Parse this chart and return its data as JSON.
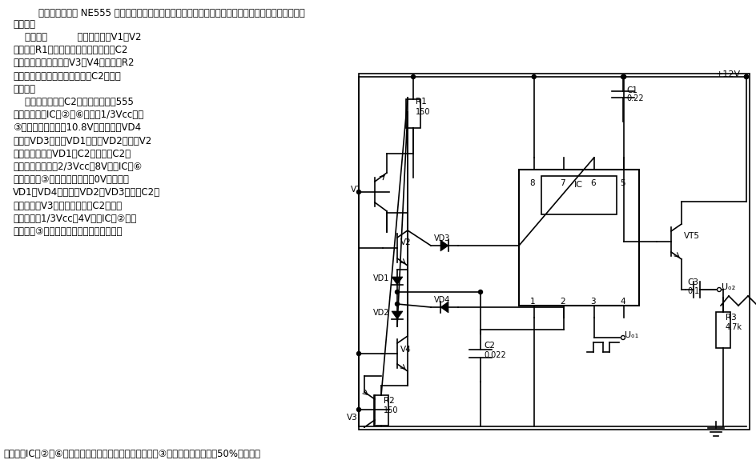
{
  "bg_color": "#ffffff",
  "line_color": "#000000",
  "title1": "本电路利用一块 NE555 时基集成电路及少量外围元件，可方便地同时得到三角波和方波两种脉冲波形",
  "title2": "的输出。",
  "body": [
    "    电路如图          所示，晶体管V1、V2",
    "和电阻器R1构成恒流源，用于对电容器C2",
    "实现线性充电；晶体管V3、V4和电阻器R2",
    "构成另一恒流源，用于对电容器C2实现线",
    "性放电。",
    "    电路刚接通时，C2上的电压为零，555",
    "时基集成电路IC的②、⑥脚小于1/3Vcc，其",
    "③脚输出高电平（约10.8V），二极管VD4",
    "正偏，VD3反偏，VD1正偏，VD2反偏，V2",
    "集电极电流通过VD1向C2充电。当C2上",
    "的电压线性增长到2/3Vcc即8V时，IC的⑥",
    "脚触发，使③脚输出低电平（约0V）。此时",
    "VD1、VD4反偏，而VD2、VD3正偏，C2上",
    "的电荷通过V3集电极放电。当C2上电压",
    "线性下降到1/3Vcc即4V时，IC的②脚触",
    "发，而使③脚置位，输出高电平。如此周而"
  ],
  "bottom": "复始，在IC的②、⑥脚便可得到线性度很高的三角波，而在③脚便可得到占空比为50%的方波。"
}
